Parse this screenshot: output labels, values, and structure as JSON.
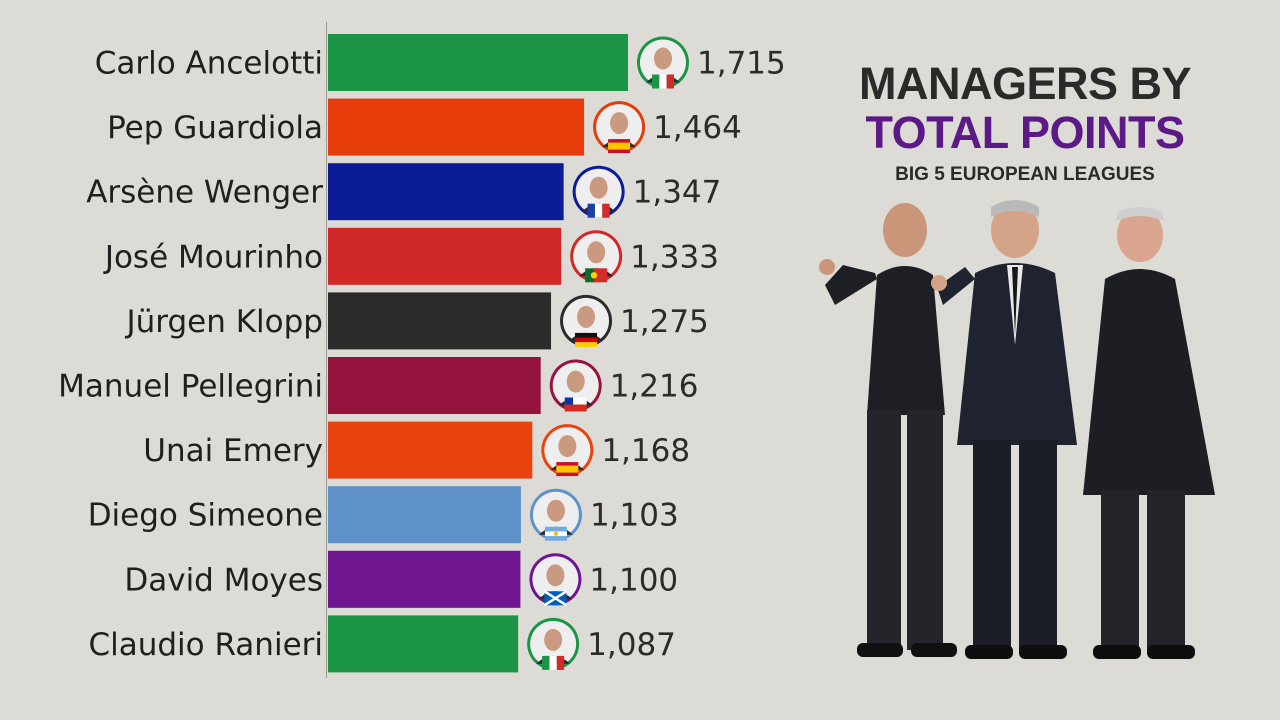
{
  "header": {
    "title_line1": "MANAGERS BY",
    "title_line2": "TOTAL POINTS",
    "subtitle": "BIG 5 EUROPEAN LEAGUES",
    "title_line2_color": "#5b1a86"
  },
  "chart_data": {
    "type": "bar",
    "orientation": "horizontal",
    "categories": [
      "Carlo Ancelotti",
      "Pep Guardiola",
      "Arsène Wenger",
      "José Mourinho",
      "Jürgen Klopp",
      "Manuel Pellegrini",
      "Unai Emery",
      "Diego Simeone",
      "David Moyes",
      "Claudio Ranieri"
    ],
    "values": [
      1715,
      1464,
      1347,
      1333,
      1275,
      1216,
      1168,
      1103,
      1100,
      1087
    ],
    "value_labels": [
      "1,715",
      "1,464",
      "1,347",
      "1,333",
      "1,275",
      "1,216",
      "1,168",
      "1,103",
      "1,100",
      "1,087"
    ],
    "colors": [
      "#1b9545",
      "#e53c0a",
      "#0c1c96",
      "#d02727",
      "#2b2b2b",
      "#94133f",
      "#ea440e",
      "#5e92c8",
      "#6f1590",
      "#1b9545"
    ],
    "flags": [
      "italy",
      "spain",
      "france",
      "portugal",
      "germany",
      "chile",
      "spain",
      "argentina",
      "scotland",
      "italy"
    ],
    "ring_colors": [
      "#1b9545",
      "#e53c0a",
      "#0c1c96",
      "#d02727",
      "#2b2b2b",
      "#94133f",
      "#ea440e",
      "#5e92c8",
      "#6f1590",
      "#1b9545"
    ],
    "xlim": [
      0,
      1715
    ],
    "grid": false,
    "legend": "none"
  }
}
